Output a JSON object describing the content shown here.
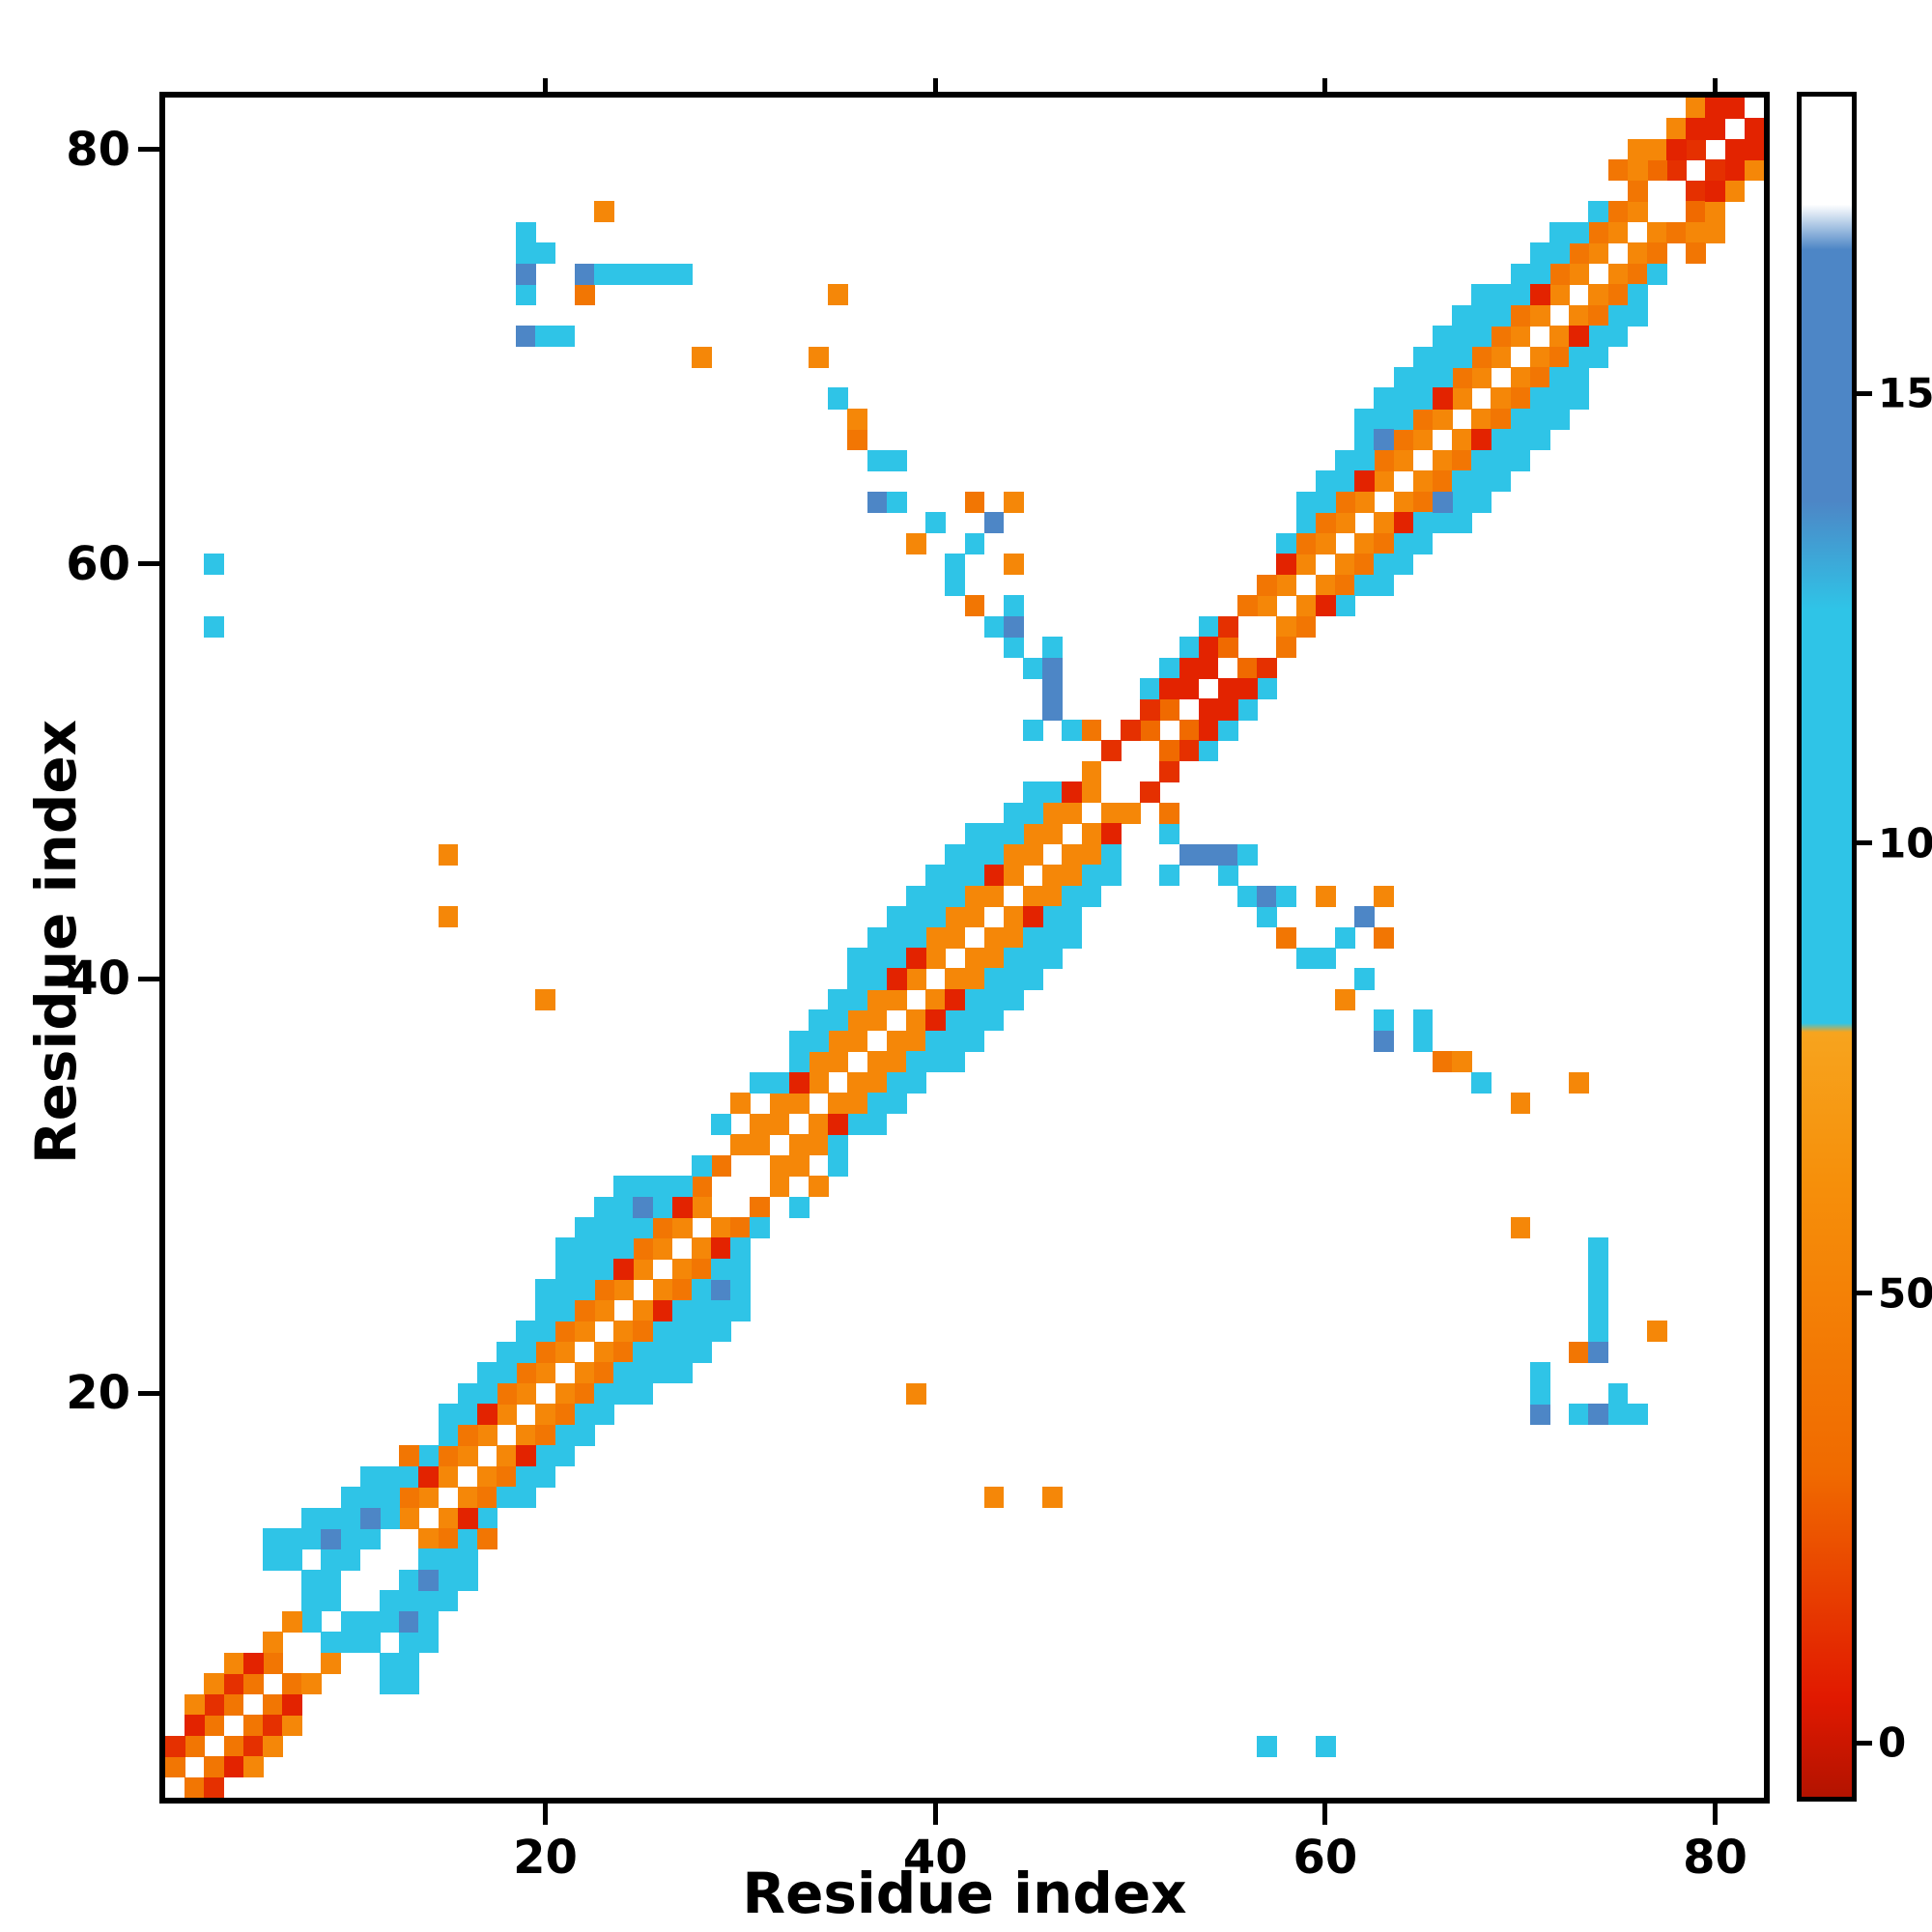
{
  "chart_data": {
    "type": "heatmap",
    "title": "",
    "xlabel": "Residue index",
    "ylabel": "Residue index",
    "x_ticks": [
      20,
      40,
      60,
      80
    ],
    "y_ticks": [
      20,
      40,
      60,
      80
    ],
    "x_range": [
      0.5,
      82.5
    ],
    "y_range": [
      0.5,
      82.5
    ],
    "n_residues": 82,
    "symmetric": true,
    "background": "#ffffff",
    "colorbar": {
      "range": [
        -6,
        183
      ],
      "ticks": [
        0,
        50,
        100,
        150
      ],
      "stops": [
        [
          -6,
          "#b31300"
        ],
        [
          5,
          "#e11900"
        ],
        [
          30,
          "#f06a00"
        ],
        [
          62,
          "#f68f0a"
        ],
        [
          79,
          "#f7a41e"
        ],
        [
          80,
          "#2fc4e7"
        ],
        [
          126,
          "#2fc4e7"
        ],
        [
          138,
          "#4d86c6"
        ],
        [
          166,
          "#4d86c6"
        ],
        [
          171,
          "#ffffff"
        ],
        [
          183,
          "#ffffff"
        ]
      ]
    },
    "bands": [
      {
        "d": 1,
        "from": 1,
        "to": 6,
        "v": 40
      },
      {
        "d": 1,
        "from": 8,
        "to": 9,
        "v": 95
      },
      {
        "d": 1,
        "from": 13,
        "to": 28,
        "v": 55
      },
      {
        "d": 1,
        "from": 31,
        "to": 48,
        "v": 55
      },
      {
        "d": 1,
        "from": 51,
        "to": 55,
        "v": 30
      },
      {
        "d": 1,
        "from": 57,
        "to": 76,
        "v": 55
      },
      {
        "d": 1,
        "from": 78,
        "to": 81,
        "v": 12
      },
      {
        "d": 2,
        "from": 1,
        "to": 5,
        "v": 12
      },
      {
        "d": 2,
        "from": 6,
        "to": 7,
        "v": 55
      },
      {
        "d": 2,
        "from": 8,
        "to": 12,
        "v": 95
      },
      {
        "d": 2,
        "from": 13,
        "to": 29,
        "v": 40
      },
      {
        "d": 2,
        "from": 30,
        "to": 48,
        "v": 55
      },
      {
        "d": 2,
        "from": 49,
        "to": 55,
        "v": 12
      },
      {
        "d": 2,
        "from": 56,
        "to": 76,
        "v": 40
      },
      {
        "d": 2,
        "from": 77,
        "to": 80,
        "v": 30
      },
      {
        "d": 3,
        "from": 2,
        "to": 4,
        "v": 55
      },
      {
        "d": 3,
        "from": 8,
        "to": 12,
        "v": 95
      },
      {
        "d": 3,
        "from": 14,
        "to": 28,
        "v": 95
      },
      {
        "d": 3,
        "from": 32,
        "to": 46,
        "v": 95
      },
      {
        "d": 3,
        "from": 51,
        "to": 54,
        "v": 95
      },
      {
        "d": 3,
        "from": 58,
        "to": 74,
        "v": 95
      },
      {
        "d": 3,
        "from": 76,
        "to": 79,
        "v": 55
      },
      {
        "d": 4,
        "from": 15,
        "to": 26,
        "v": 95
      },
      {
        "d": 4,
        "from": 33,
        "to": 45,
        "v": 95
      },
      {
        "d": 4,
        "from": 59,
        "to": 72,
        "v": 95
      },
      {
        "d": 5,
        "from": 20,
        "to": 25,
        "v": 95
      },
      {
        "d": 5,
        "from": 36,
        "to": 42,
        "v": 95
      },
      {
        "d": 5,
        "from": 62,
        "to": 68,
        "v": 95
      }
    ],
    "cells": [
      [
        2,
        4,
        8
      ],
      [
        5,
        7,
        8
      ],
      [
        6,
        12,
        95
      ],
      [
        6,
        13,
        95
      ],
      [
        7,
        12,
        95
      ],
      [
        7,
        13,
        95
      ],
      [
        8,
        13,
        95
      ],
      [
        8,
        14,
        95
      ],
      [
        9,
        12,
        95
      ],
      [
        9,
        13,
        150
      ],
      [
        9,
        14,
        95
      ],
      [
        10,
        13,
        95
      ],
      [
        10,
        14,
        95
      ],
      [
        10,
        15,
        95
      ],
      [
        11,
        14,
        150
      ],
      [
        11,
        15,
        95
      ],
      [
        11,
        16,
        95
      ],
      [
        12,
        15,
        95
      ],
      [
        12,
        16,
        95
      ],
      [
        13,
        16,
        95
      ],
      [
        13,
        17,
        40
      ],
      [
        14,
        16,
        8
      ],
      [
        17,
        19,
        8
      ],
      [
        24,
        26,
        8
      ],
      [
        27,
        29,
        8
      ],
      [
        21,
        27,
        95
      ],
      [
        22,
        27,
        95
      ],
      [
        22,
        28,
        95
      ],
      [
        23,
        28,
        95
      ],
      [
        23,
        29,
        95
      ],
      [
        24,
        29,
        95
      ],
      [
        24,
        30,
        95
      ],
      [
        25,
        29,
        150
      ],
      [
        25,
        30,
        95
      ],
      [
        26,
        29,
        95
      ],
      [
        26,
        30,
        95
      ],
      [
        27,
        30,
        95
      ],
      [
        15,
        43,
        55
      ],
      [
        15,
        46,
        55
      ],
      [
        20,
        39,
        55
      ],
      [
        3,
        57,
        95
      ],
      [
        3,
        60,
        95
      ],
      [
        19,
        71,
        150
      ],
      [
        20,
        71,
        95
      ],
      [
        21,
        71,
        95
      ],
      [
        28,
        70,
        55
      ],
      [
        19,
        73,
        95
      ],
      [
        19,
        74,
        150
      ],
      [
        19,
        75,
        95
      ],
      [
        20,
        75,
        95
      ],
      [
        22,
        73,
        40
      ],
      [
        22,
        74,
        150
      ],
      [
        23,
        74,
        95
      ],
      [
        24,
        74,
        95
      ],
      [
        25,
        74,
        95
      ],
      [
        26,
        74,
        95
      ],
      [
        27,
        74,
        95
      ],
      [
        23,
        77,
        55
      ],
      [
        19,
        76,
        95
      ],
      [
        33,
        35,
        8
      ],
      [
        38,
        40,
        8
      ],
      [
        39,
        41,
        8
      ],
      [
        43,
        45,
        8
      ],
      [
        47,
        49,
        8
      ],
      [
        29,
        33,
        95
      ],
      [
        30,
        34,
        55
      ],
      [
        31,
        35,
        95
      ],
      [
        63,
        66,
        150
      ],
      [
        34,
        70,
        55
      ],
      [
        35,
        73,
        55
      ],
      [
        35,
        68,
        95
      ],
      [
        36,
        66,
        40
      ],
      [
        36,
        67,
        55
      ],
      [
        37,
        65,
        95
      ],
      [
        38,
        65,
        95
      ],
      [
        37,
        63,
        150
      ],
      [
        38,
        63,
        95
      ],
      [
        39,
        61,
        55
      ],
      [
        40,
        62,
        95
      ],
      [
        41,
        60,
        95
      ],
      [
        41,
        59,
        95
      ],
      [
        42,
        58,
        40
      ],
      [
        42,
        61,
        95
      ],
      [
        42,
        63,
        40
      ],
      [
        43,
        62,
        150
      ],
      [
        43,
        57,
        95
      ],
      [
        44,
        56,
        95
      ],
      [
        44,
        57,
        150
      ],
      [
        44,
        58,
        95
      ],
      [
        44,
        60,
        55
      ],
      [
        44,
        63,
        55
      ],
      [
        45,
        55,
        95
      ],
      [
        45,
        52,
        95
      ],
      [
        46,
        53,
        150
      ],
      [
        46,
        54,
        150
      ],
      [
        46,
        55,
        150
      ],
      [
        46,
        56,
        95
      ],
      [
        47,
        52,
        95
      ],
      [
        48,
        52,
        40
      ],
      [
        52,
        54,
        8
      ],
      [
        53,
        55,
        8
      ],
      [
        53,
        54,
        8
      ],
      [
        54,
        56,
        8
      ],
      [
        54,
        55,
        8
      ],
      [
        58,
        60,
        8
      ],
      [
        62,
        64,
        8
      ],
      [
        66,
        68,
        8
      ],
      [
        71,
        73,
        8
      ],
      [
        75,
        79,
        40
      ],
      [
        76,
        80,
        55
      ],
      [
        78,
        80,
        8
      ],
      [
        79,
        81,
        8
      ],
      [
        80,
        81,
        8
      ],
      [
        80,
        82,
        8
      ],
      [
        81,
        82,
        8
      ]
    ]
  }
}
